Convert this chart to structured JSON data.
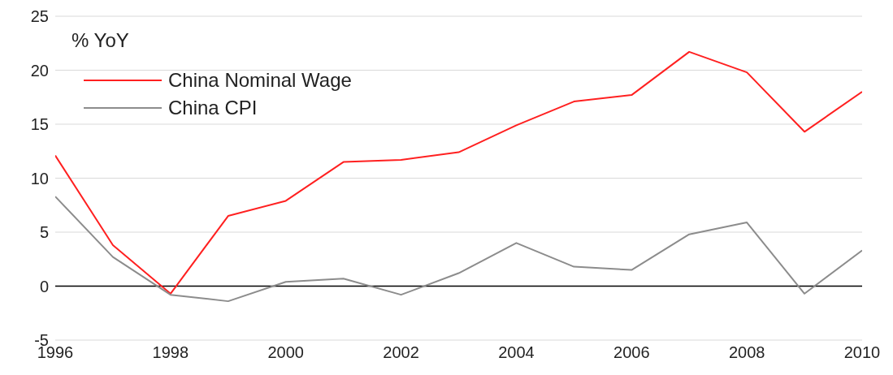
{
  "chart_data": {
    "type": "line",
    "annotations": [
      "% YoY"
    ],
    "x": [
      1996,
      1997,
      1998,
      1999,
      2000,
      2001,
      2002,
      2003,
      2004,
      2005,
      2006,
      2007,
      2008,
      2009,
      2010
    ],
    "series": [
      {
        "name": "China Nominal Wage",
        "color": "#ff2020",
        "values": [
          12.1,
          3.8,
          -0.7,
          6.5,
          7.9,
          11.5,
          11.7,
          12.4,
          14.9,
          17.1,
          17.7,
          21.7,
          19.8,
          14.3,
          18.0
        ]
      },
      {
        "name": "China CPI",
        "color": "#8c8c8c",
        "values": [
          8.3,
          2.7,
          -0.8,
          -1.4,
          0.4,
          0.7,
          -0.8,
          1.2,
          4.0,
          1.8,
          1.5,
          4.8,
          5.9,
          -0.7,
          3.3
        ]
      }
    ],
    "xlim": [
      1996,
      2010
    ],
    "xticks": [
      1996,
      1998,
      2000,
      2002,
      2004,
      2006,
      2008,
      2010
    ],
    "ylim": [
      -5,
      25
    ],
    "yticks": [
      -5,
      0,
      5,
      10,
      15,
      20,
      25
    ],
    "grid": "y",
    "legend": "top left",
    "marker": "none",
    "line_style": "solid",
    "ref_lines": [
      {
        "axis": "y",
        "value": 0,
        "color": "#000000"
      }
    ]
  }
}
